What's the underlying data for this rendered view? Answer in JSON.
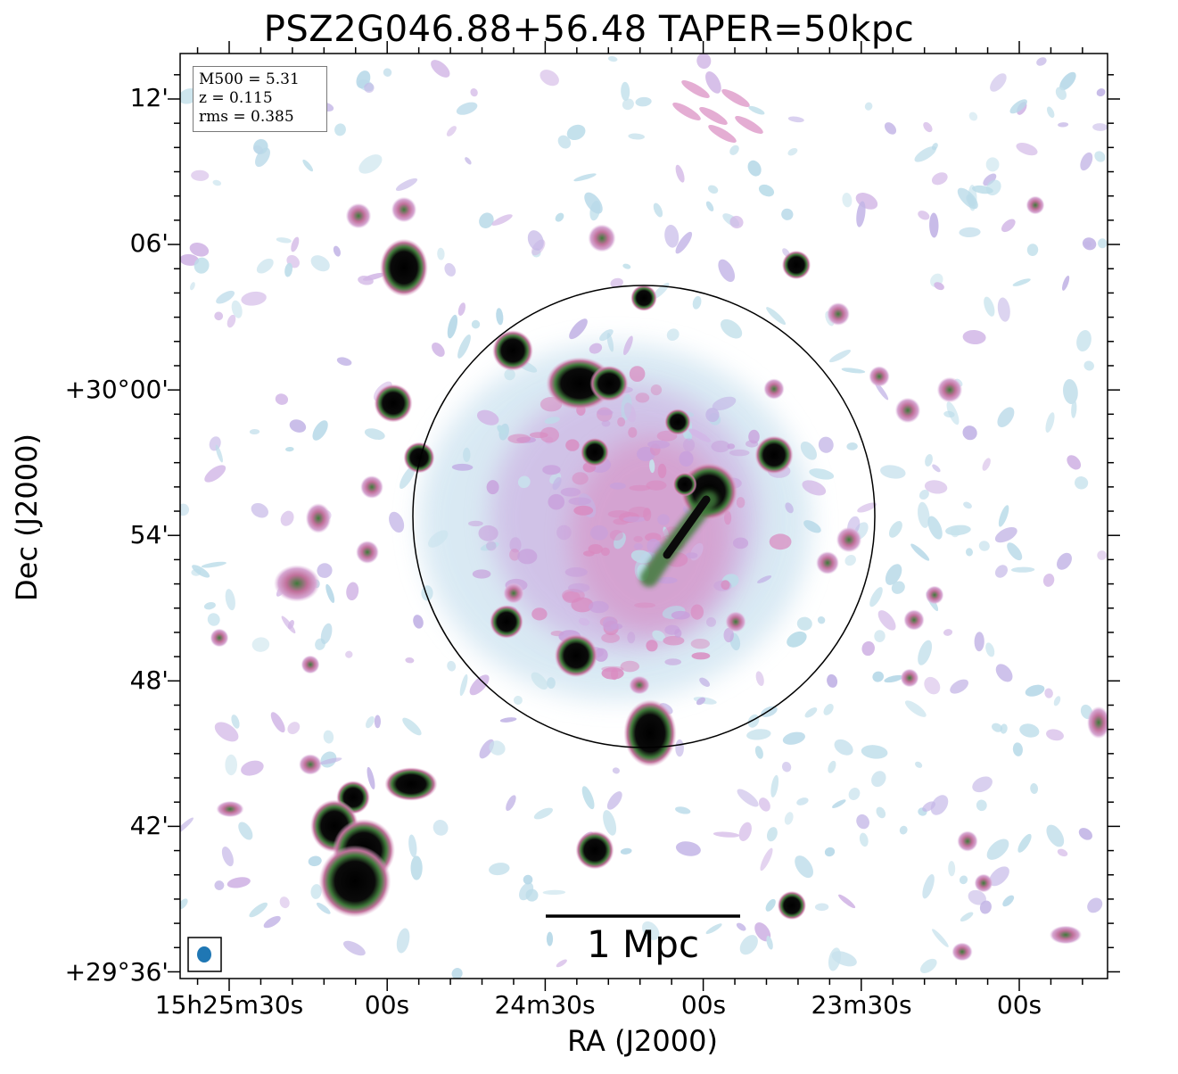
{
  "figure": {
    "title": "PSZ2G046.88+56.48 TAPER=50kpc",
    "xlabel": "RA (J2000)",
    "ylabel": "Dec (J2000)",
    "xticks": [
      "15h25m30s",
      "00s",
      "24m30s",
      "00s",
      "23m30s",
      "00s"
    ],
    "yticks": [
      "12'",
      "06'",
      "+30°00'",
      "54'",
      "48'",
      "42'",
      "+29°36'"
    ]
  },
  "infobox": {
    "line1": "M500 = 5.31",
    "line2": "z = 0.115",
    "line3": "rms = 0.385"
  },
  "scalebar": {
    "label": "1 Mpc"
  },
  "colors": {
    "beam": "#1f77b4",
    "source_core": "#000000",
    "halo_pink": "#d98ac0",
    "faint_blue": "#bcdde9",
    "faint_purple": "#c3b5e6",
    "source_rim_green": "#3f7a3a"
  }
}
